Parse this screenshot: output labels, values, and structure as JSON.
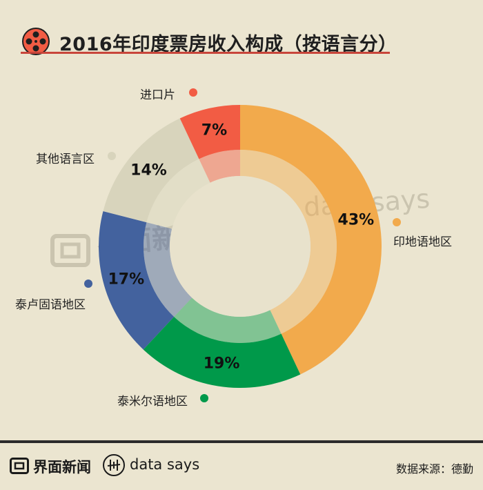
{
  "header": {
    "title": "2016年印度票房收入构成（按语言分）",
    "icon": "film-reel-icon"
  },
  "chart_data": {
    "type": "pie",
    "title": "2016年印度票房收入构成（按语言分）",
    "slices": [
      {
        "label": "印地语地区",
        "value": 43,
        "display": "43%",
        "color": "#f2aa4c"
      },
      {
        "label": "泰米尔语地区",
        "value": 19,
        "display": "19%",
        "color": "#00994a"
      },
      {
        "label": "泰卢固语地区",
        "value": 17,
        "display": "17%",
        "color": "#43629e"
      },
      {
        "label": "其他语言区",
        "value": 14,
        "display": "14%",
        "color": "#d8d4bc"
      },
      {
        "label": "进口片",
        "value": 7,
        "display": "7%",
        "color": "#f25c44"
      }
    ],
    "style": "donut"
  },
  "watermark": {
    "brand_cn": "界面新闻",
    "brand_en": "data says"
  },
  "footer": {
    "brand_cn": "界面新闻",
    "brand_en": "data says",
    "source": "数据来源：德勤"
  }
}
